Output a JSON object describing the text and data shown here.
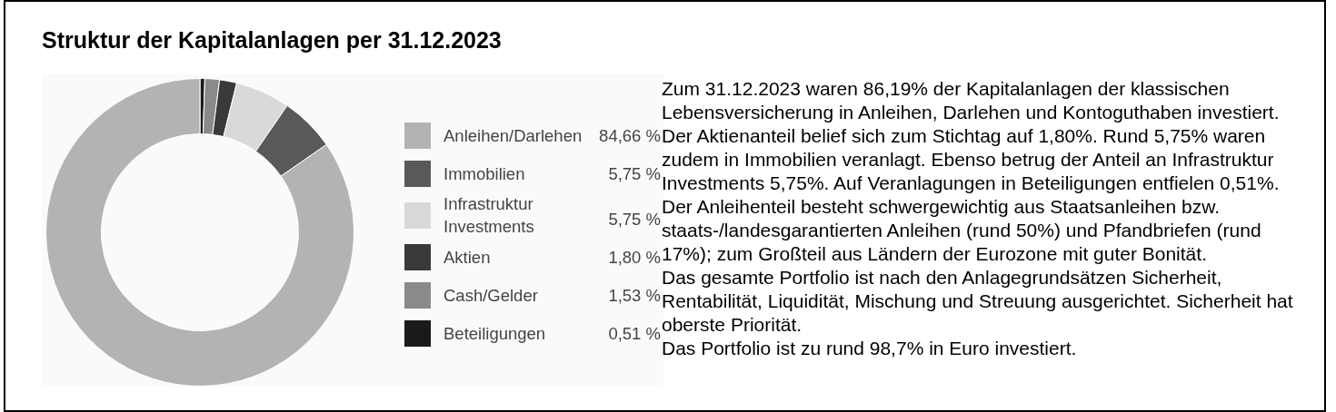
{
  "chart_data": {
    "type": "donut",
    "title": "Struktur der Kapitalanlagen per 31.12.2023",
    "categories": [
      "Anleihen/Darlehen",
      "Immobilien",
      "Infrastruktur Investments",
      "Aktien",
      "Cash/Gelder",
      "Beteiligungen"
    ],
    "values": [
      84.66,
      5.75,
      5.75,
      1.8,
      1.53,
      0.51
    ],
    "value_labels": [
      "84,66 %",
      "5,75 %",
      "5,75 %",
      "1,80 %",
      "1,53 %",
      "0,51 %"
    ],
    "colors": [
      "#b3b3b3",
      "#595959",
      "#d9d9d9",
      "#3a3a3a",
      "#8a8a8a",
      "#1a1a1a"
    ],
    "legend": "right",
    "annotations": [
      "Zum 31.12.2023 waren 86,19% der Kapitalanlagen der klassischen Lebensversicherung in Anleihen, Darlehen und Kontoguthaben investiert. Der Aktienanteil belief sich zum Stichtag auf 1,80%. Rund 5,75% waren zudem in Immobilien veranlagt. Ebenso betrug der Anteil an Infrastruktur Investments 5,75%. Auf Veranlagungen in Beteiligungen entfielen 0,51%. Der Anleihenteil besteht schwergewichtig aus Staatsanleihen bzw. staats-/landesgarantierten Anleihen (rund 50%) und Pfandbriefen (rund 17%); zum Großteil aus Ländern der Eurozone mit guter Bonität.",
      "Das gesamte Portfolio ist nach den Anlagegrundsätzen Sicherheit, Rentabilität, Liquidität, Mischung und Streuung ausgerichtet. Sicherheit hat oberste Priorität.",
      "Das Portfolio ist zu rund 98,7% in Euro investiert."
    ]
  }
}
